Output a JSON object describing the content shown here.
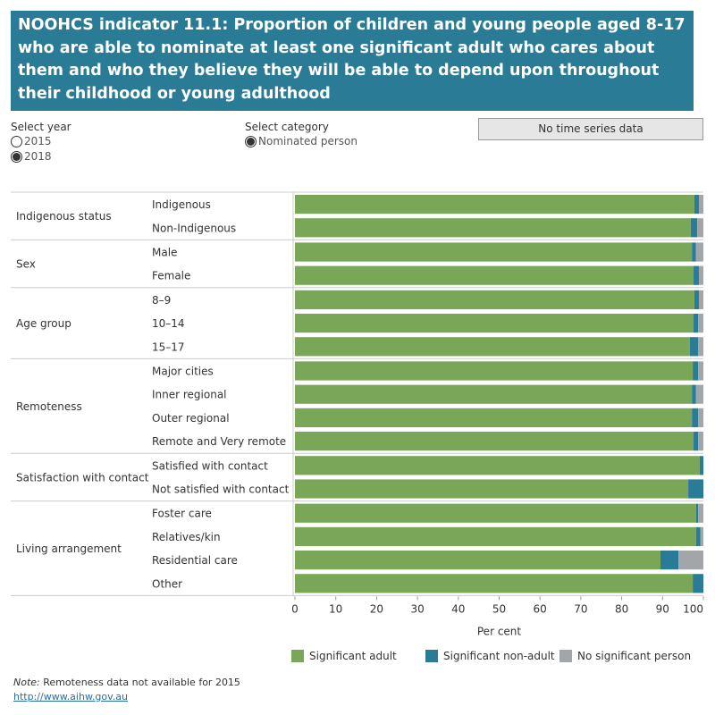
{
  "title": "NOOHCS indicator 11.1: Proportion of children and young people aged 8-17 who are able to nominate at least one significant adult who cares about them and who they believe they will be able to depend upon throughout their childhood or young adulthood",
  "filters": {
    "year_label": "Select year",
    "years": [
      "2015",
      "2018"
    ],
    "selected_year": "2018",
    "category_label": "Select category",
    "categories": [
      "Nominated person"
    ],
    "time_series_button": "No time series data"
  },
  "colors": {
    "Significant adult": "#7aa757",
    "Significant non-adult": "#2a7b95",
    "No significant person": "#a3a6a8"
  },
  "chart_data": {
    "type": "bar",
    "stacked": true,
    "orientation": "horizontal",
    "xlabel": "Per cent",
    "xlim": [
      0,
      100
    ],
    "xticks": [
      0,
      10,
      20,
      30,
      40,
      50,
      60,
      70,
      80,
      90,
      100
    ],
    "legend": "bottom",
    "groups": [
      {
        "name": "Indigenous  status",
        "rows": [
          {
            "label": "Indigenous",
            "values": [
              97.8,
              1.1,
              1.1
            ]
          },
          {
            "label": "Non-Indigenous",
            "values": [
              96.9,
              1.6,
              1.5
            ]
          }
        ]
      },
      {
        "name": "Sex",
        "rows": [
          {
            "label": "Male",
            "values": [
              97.2,
              1.0,
              1.8
            ]
          },
          {
            "label": "Female",
            "values": [
              97.6,
              1.3,
              1.1
            ]
          }
        ]
      },
      {
        "name": "Age group",
        "rows": [
          {
            "label": "8–9",
            "values": [
              97.8,
              1.1,
              1.1
            ]
          },
          {
            "label": "10–14",
            "values": [
              97.6,
              1.1,
              1.3
            ]
          },
          {
            "label": "15–17",
            "values": [
              96.7,
              2.0,
              1.3
            ]
          }
        ]
      },
      {
        "name": "Remoteness",
        "rows": [
          {
            "label": "Major cities",
            "values": [
              97.4,
              1.3,
              1.3
            ]
          },
          {
            "label": "Inner regional",
            "values": [
              97.2,
              1.0,
              1.8
            ]
          },
          {
            "label": "Outer regional",
            "values": [
              97.2,
              1.5,
              1.3
            ]
          },
          {
            "label": "Remote and Very remote",
            "values": [
              97.6,
              1.1,
              1.3
            ]
          }
        ]
      },
      {
        "name": "Satisfaction with contact",
        "rows": [
          {
            "label": "Satisfied with contact",
            "values": [
              99.1,
              0.9,
              0
            ]
          },
          {
            "label": "Not satisfied with contact",
            "values": [
              96.3,
              3.7,
              0
            ]
          }
        ]
      },
      {
        "name": "Living arrangement",
        "rows": [
          {
            "label": "Foster care",
            "values": [
              98.2,
              0.5,
              1.3
            ]
          },
          {
            "label": "Relatives/kin",
            "values": [
              98.2,
              1.1,
              0.7
            ]
          },
          {
            "label": "Residential care",
            "values": [
              89.5,
              4.4,
              6.1
            ]
          },
          {
            "label": "Other",
            "values": [
              97.4,
              2.6,
              0
            ]
          }
        ]
      }
    ],
    "series": [
      "Significant adult",
      "Significant non-adult",
      "No significant person"
    ]
  },
  "note_label": "Note:",
  "note": " Remoteness data not available for 2015",
  "link": "http://www.aihw.gov.au"
}
